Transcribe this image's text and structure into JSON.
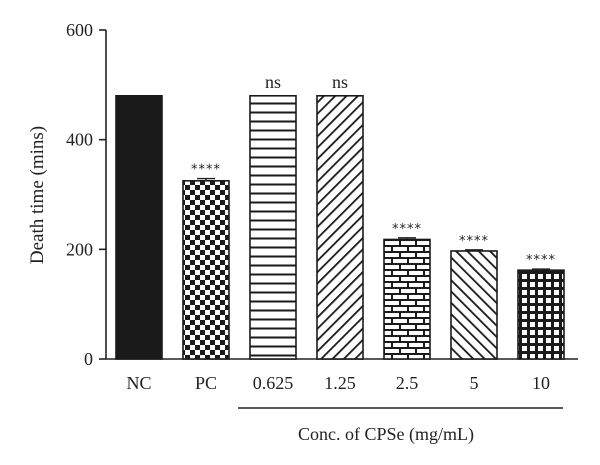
{
  "chart_data": {
    "type": "bar",
    "title": "",
    "xlabel": "",
    "ylabel": "Death time (mins)",
    "ylim": [
      0,
      600
    ],
    "yticks": [
      "0",
      "200",
      "400",
      "600"
    ],
    "categories": [
      "NC",
      "PC",
      "0.625",
      "1.25",
      "2.5",
      "5",
      "10"
    ],
    "values": [
      480,
      325,
      480,
      480,
      218,
      197,
      162
    ],
    "errors": [
      0,
      4,
      0,
      0,
      3,
      2,
      2
    ],
    "significance": [
      "",
      "****",
      "ns",
      "ns",
      "****",
      "****",
      "****"
    ],
    "patterns": [
      "solid",
      "checker",
      "horizontal-lines",
      "diagonal-lines",
      "brick",
      "back-diagonal-lines",
      "grid"
    ],
    "group_label": "Conc. of CPSe (mg/mL)",
    "grid": false,
    "bar_color": "#1a1a1a"
  }
}
